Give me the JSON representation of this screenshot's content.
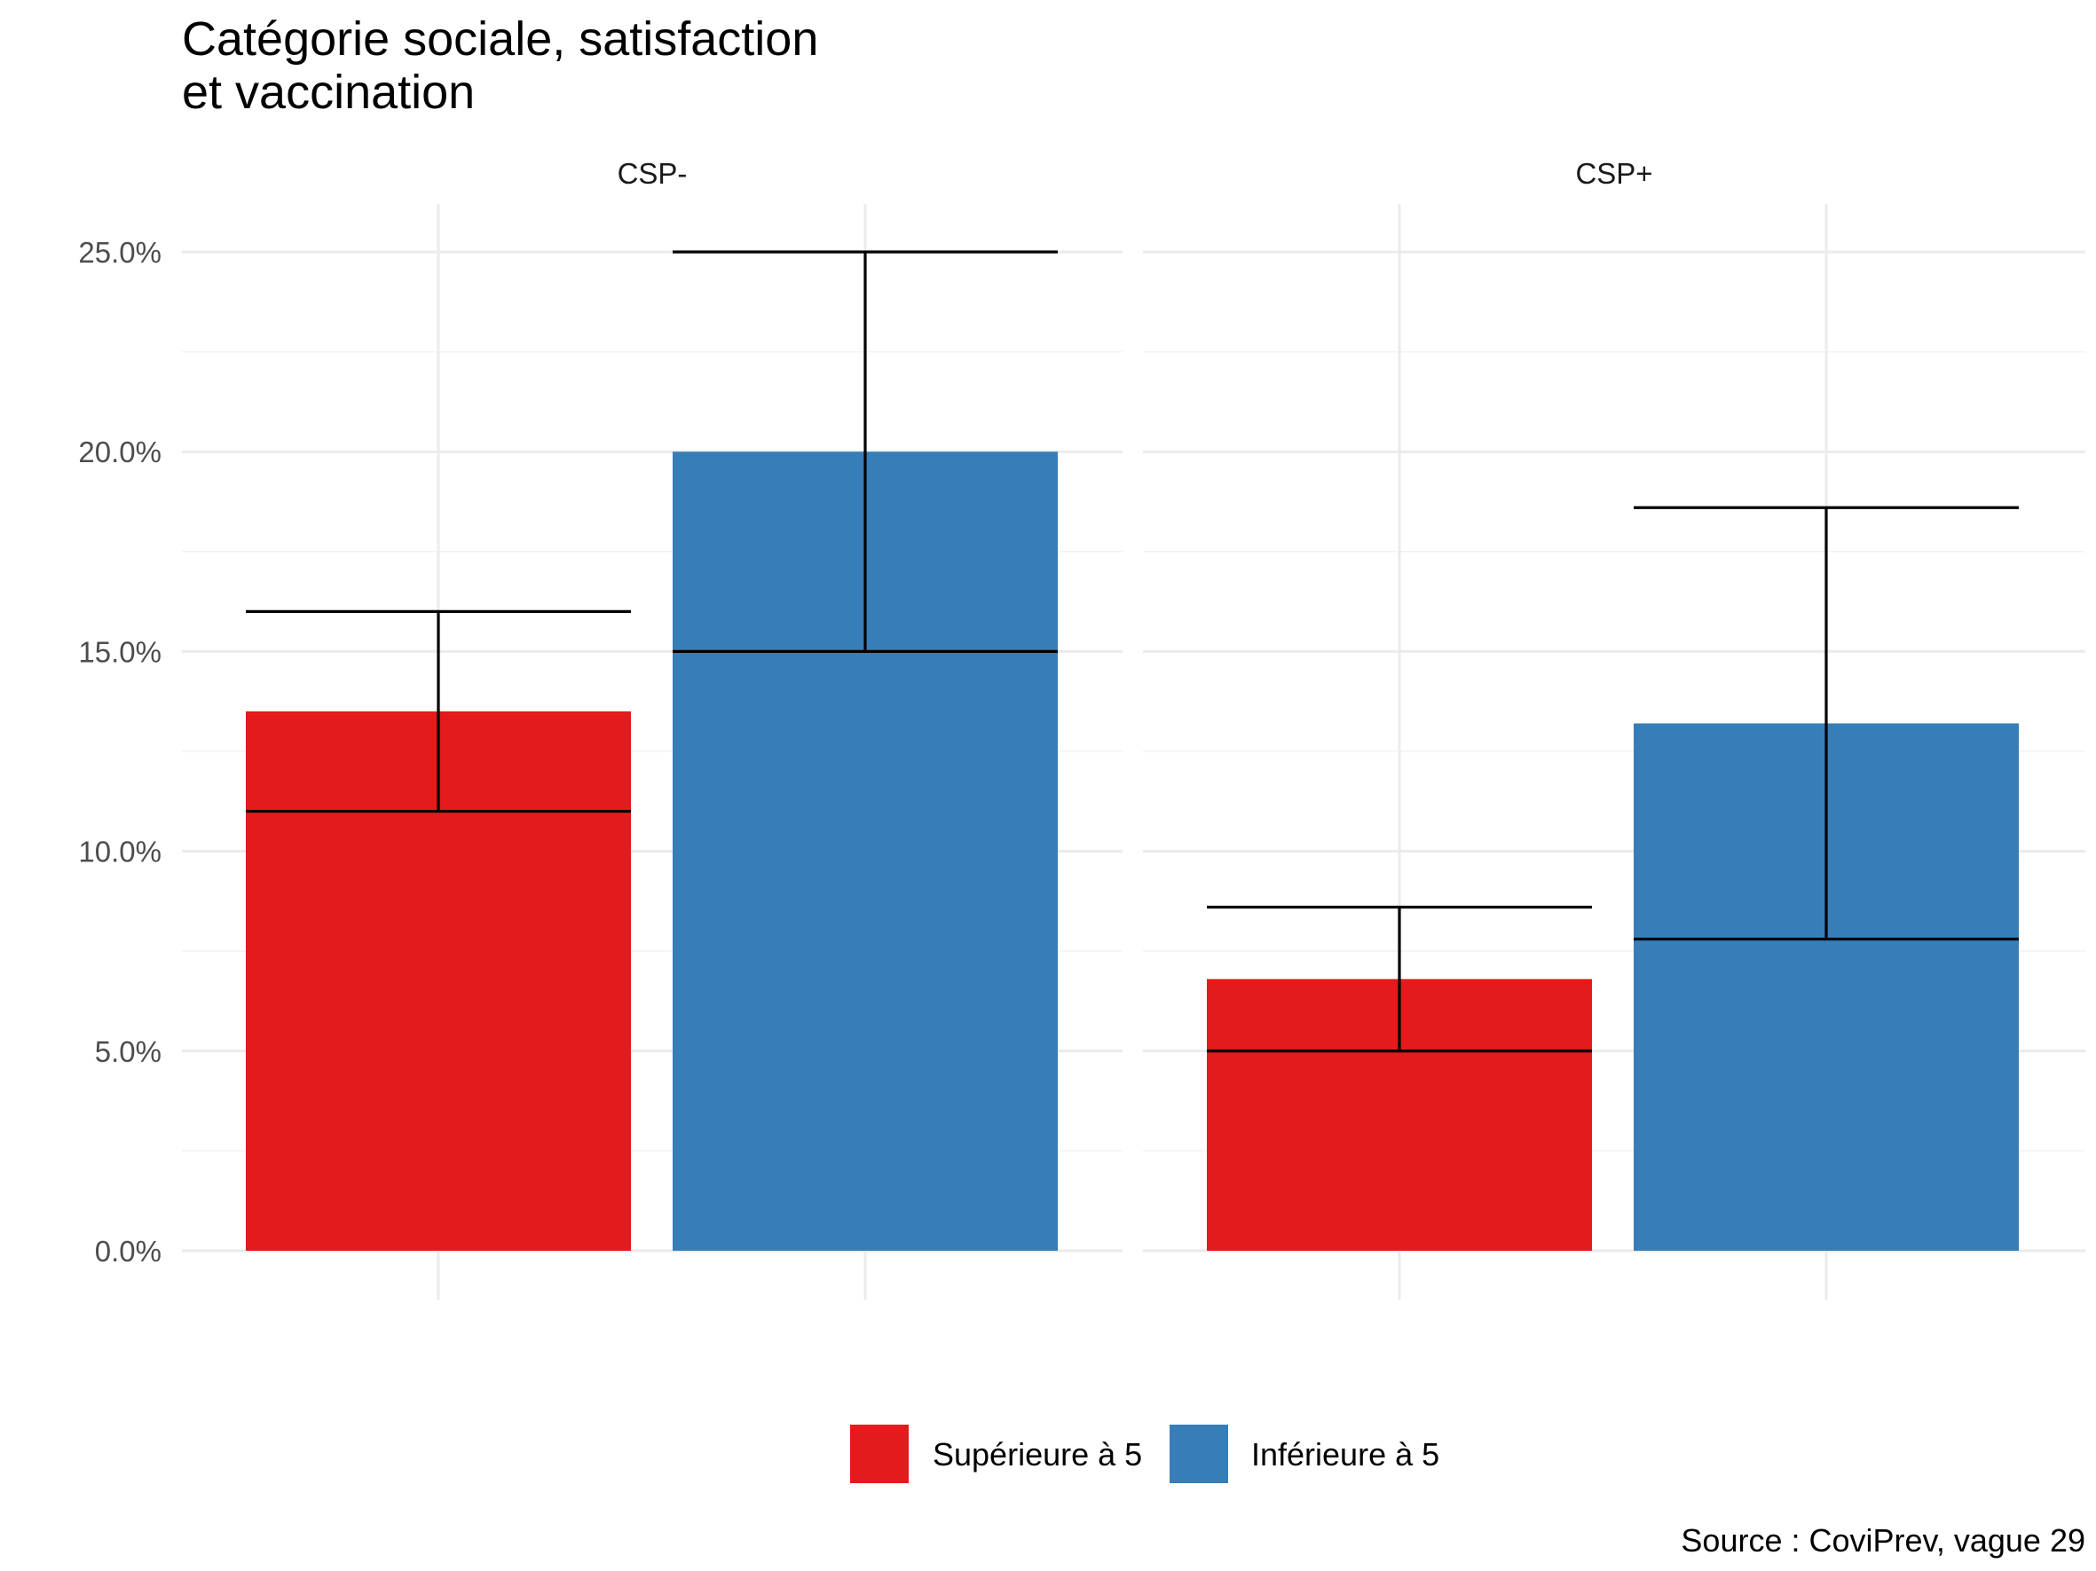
{
  "chart_data": {
    "type": "bar",
    "title_lines": [
      "Catégorie sociale, satisfaction",
      "et vaccination"
    ],
    "xlabel": "",
    "ylabel": "",
    "ylim": [
      0,
      0.25
    ],
    "y_ticks": [
      0,
      0.05,
      0.1,
      0.15,
      0.2,
      0.25
    ],
    "y_tick_labels": [
      "0.0%",
      "5.0%",
      "10.0%",
      "15.0%",
      "20.0%",
      "25.0%"
    ],
    "grid": true,
    "legend_position": "bottom",
    "caption": "Source : CoviPrev, vague 29",
    "series": [
      {
        "name": "Supérieure à 5",
        "color": "#E41A1C"
      },
      {
        "name": "Inférieure à 5",
        "color": "#377EB8"
      }
    ],
    "facets": [
      {
        "label": "CSP-",
        "bars": [
          {
            "series": "Supérieure à 5",
            "value": 0.135,
            "error_low": 0.11,
            "error_high": 0.16
          },
          {
            "series": "Inférieure à 5",
            "value": 0.2,
            "error_low": 0.15,
            "error_high": 0.25
          }
        ]
      },
      {
        "label": "CSP+",
        "bars": [
          {
            "series": "Supérieure à 5",
            "value": 0.068,
            "error_low": 0.05,
            "error_high": 0.086
          },
          {
            "series": "Inférieure à 5",
            "value": 0.132,
            "error_low": 0.078,
            "error_high": 0.186
          }
        ]
      }
    ]
  }
}
